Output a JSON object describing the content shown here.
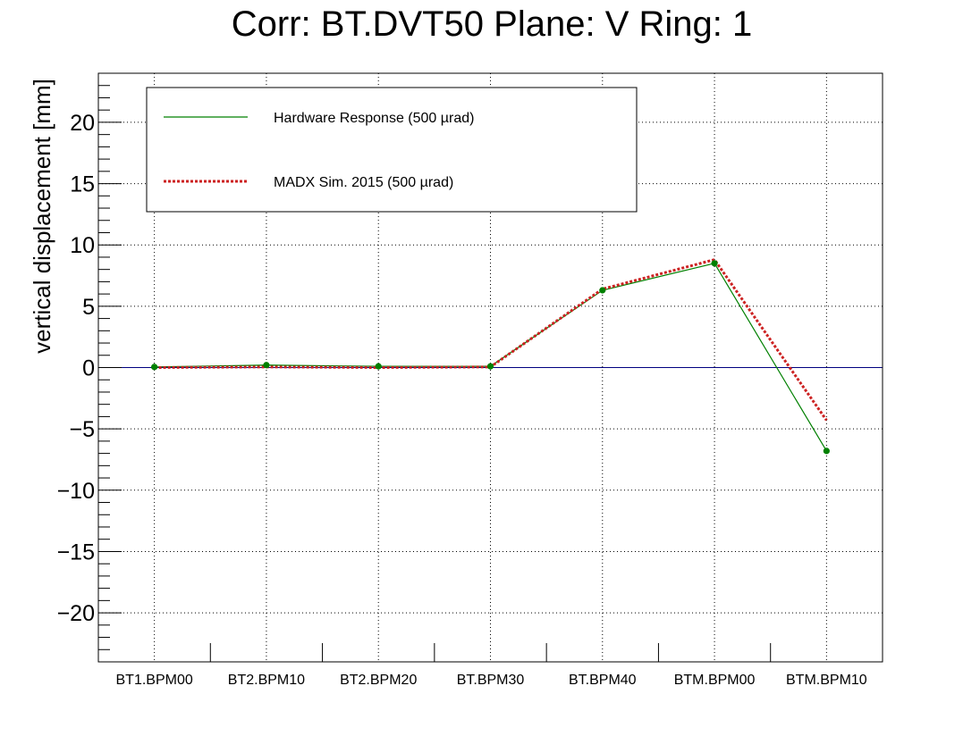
{
  "chart_data": {
    "type": "line",
    "title": "Corr: BT.DVT50 Plane: V Ring: 1",
    "xlabel": "",
    "ylabel": "vertical displacement [mm]",
    "categories": [
      "BT1.BPM00",
      "BT2.BPM10",
      "BT2.BPM20",
      "BT.BPM30",
      "BT.BPM40",
      "BTM.BPM00",
      "BTM.BPM10"
    ],
    "ylim": [
      -24,
      24
    ],
    "yticks": [
      -20,
      -15,
      -10,
      -5,
      0,
      5,
      10,
      15,
      20
    ],
    "ytick_labels": [
      "−20",
      "−15",
      "−10",
      "−5",
      "0",
      "5",
      "10",
      "15",
      "20"
    ],
    "grid": true,
    "legend_position": "top-left",
    "reference_line": {
      "y": 0,
      "color": "#000080"
    },
    "series": [
      {
        "name": "Hardware Response (500 µrad)",
        "color": "#008000",
        "style": "solid",
        "values": [
          0.05,
          0.2,
          0.1,
          0.1,
          6.3,
          8.5,
          -6.8
        ],
        "markers": true
      },
      {
        "name": "MADX Sim. 2015 (500 µrad)",
        "color": "#cc2222",
        "style": "dotted",
        "values": [
          0.0,
          0.05,
          0.0,
          0.05,
          6.4,
          8.8,
          -4.3
        ],
        "markers": false
      }
    ]
  }
}
